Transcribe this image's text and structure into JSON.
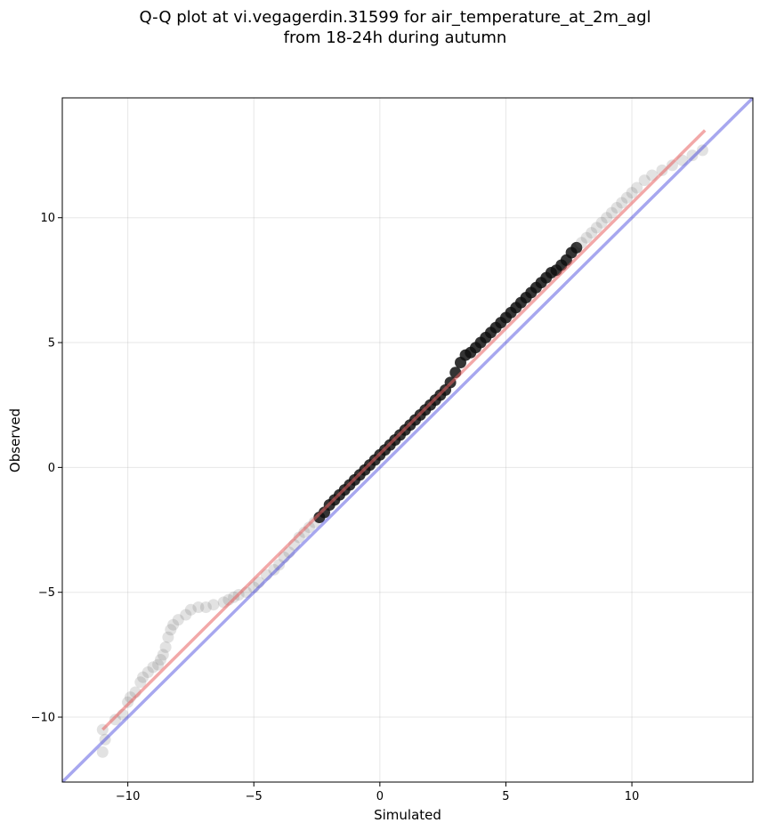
{
  "chart_data": {
    "type": "scatter",
    "title_lines": [
      "Q-Q plot at vi.vegagerdin.31599 for air_temperature_at_2m_agl",
      "from 18-24h during autumn"
    ],
    "xlabel": "Simulated",
    "ylabel": "Observed",
    "xlim": [
      -12.6,
      14.8
    ],
    "ylim": [
      -12.6,
      14.8
    ],
    "xticks": [
      -10,
      -5,
      0,
      5,
      10
    ],
    "yticks": [
      -10,
      -5,
      0,
      5,
      10
    ],
    "grid": true,
    "legend": "none",
    "colors": {
      "points": "#606060",
      "identity_line": "#3b3bdb",
      "fit_line": "#e86060"
    },
    "reference_lines": [
      {
        "name": "",
        "kind": "identity",
        "slope": 1.0,
        "intercept": 0.0
      },
      {
        "name": "",
        "kind": "fit",
        "x": [
          -11.0,
          12.9
        ],
        "y": [
          -10.5,
          13.5
        ]
      }
    ],
    "points": {
      "x": [
        -11.0,
        -11.0,
        -10.9,
        -10.5,
        -10.2,
        -10.0,
        -9.9,
        -9.7,
        -9.5,
        -9.4,
        -9.2,
        -9.0,
        -8.8,
        -8.7,
        -8.6,
        -8.5,
        -8.4,
        -8.3,
        -8.2,
        -8.0,
        -7.7,
        -7.5,
        -7.2,
        -6.9,
        -6.6,
        -6.2,
        -6.0,
        -5.8,
        -5.6,
        -5.3,
        -5.0,
        -4.8,
        -4.5,
        -4.2,
        -4.0,
        -3.8,
        -3.6,
        -3.4,
        -3.2,
        -3.0,
        -2.8,
        -2.6,
        -2.4,
        -2.2,
        -2.0,
        -1.8,
        -1.6,
        -1.4,
        -1.2,
        -1.0,
        -0.8,
        -0.6,
        -0.4,
        -0.2,
        0.0,
        0.2,
        0.4,
        0.6,
        0.8,
        1.0,
        1.2,
        1.4,
        1.6,
        1.8,
        2.0,
        2.2,
        2.4,
        2.6,
        2.8,
        3.0,
        3.2,
        3.4,
        3.6,
        3.8,
        4.0,
        4.2,
        4.4,
        4.6,
        4.8,
        5.0,
        5.2,
        5.4,
        5.6,
        5.8,
        6.0,
        6.2,
        6.4,
        6.6,
        6.8,
        7.0,
        7.2,
        7.4,
        7.6,
        7.8,
        8.0,
        8.2,
        8.4,
        8.6,
        8.8,
        9.0,
        9.2,
        9.4,
        9.6,
        9.8,
        10.0,
        10.2,
        10.5,
        10.8,
        11.2,
        11.6,
        12.0,
        12.4,
        12.8
      ],
      "y": [
        -11.4,
        -10.5,
        -10.9,
        -10.1,
        -9.9,
        -9.4,
        -9.2,
        -9.0,
        -8.6,
        -8.4,
        -8.2,
        -8.0,
        -7.9,
        -7.7,
        -7.5,
        -7.2,
        -6.8,
        -6.5,
        -6.3,
        -6.1,
        -5.9,
        -5.7,
        -5.6,
        -5.6,
        -5.5,
        -5.4,
        -5.3,
        -5.2,
        -5.1,
        -5.0,
        -4.8,
        -4.6,
        -4.3,
        -4.1,
        -3.9,
        -3.6,
        -3.4,
        -3.1,
        -2.8,
        -2.6,
        -2.4,
        -2.2,
        -2.0,
        -1.8,
        -1.5,
        -1.3,
        -1.1,
        -0.9,
        -0.7,
        -0.5,
        -0.3,
        -0.1,
        0.1,
        0.3,
        0.5,
        0.7,
        0.9,
        1.1,
        1.3,
        1.5,
        1.7,
        1.9,
        2.1,
        2.3,
        2.5,
        2.7,
        2.9,
        3.1,
        3.4,
        3.8,
        4.2,
        4.5,
        4.6,
        4.8,
        5.0,
        5.2,
        5.4,
        5.6,
        5.8,
        6.0,
        6.2,
        6.4,
        6.6,
        6.8,
        7.0,
        7.2,
        7.4,
        7.6,
        7.8,
        7.9,
        8.1,
        8.3,
        8.6,
        8.8,
        9.0,
        9.2,
        9.4,
        9.6,
        9.8,
        10.0,
        10.2,
        10.4,
        10.6,
        10.8,
        11.0,
        11.2,
        11.5,
        11.7,
        11.9,
        12.1,
        12.3,
        12.5,
        12.7
      ]
    }
  }
}
